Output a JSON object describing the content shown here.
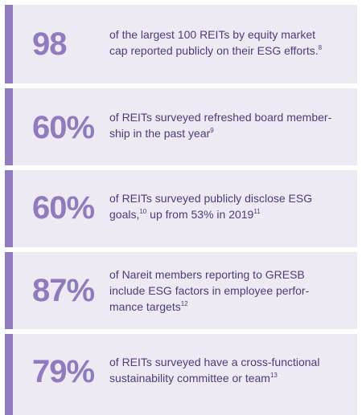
{
  "colors": {
    "accent": "#8f7bbd",
    "card_background": "#eeeaf4",
    "text": "#4a3d7a"
  },
  "stats": [
    {
      "number": "98",
      "text_lines": [
        "of the largest 100 REITs by equity market",
        "cap reported publicly on their ESG efforts."
      ],
      "footnote": "8"
    },
    {
      "number": "60%",
      "text_lines": [
        "of REITs surveyed refreshed board member-",
        "ship in the past year"
      ],
      "footnote": "9"
    },
    {
      "number": "60%",
      "text_line1": "of REITs surveyed publicly disclose ESG",
      "text_line2_a": "goals,",
      "footnote_a": "10",
      "text_line2_b": " up from 53% in 2019",
      "footnote_b": "11"
    },
    {
      "number": "87%",
      "text_lines": [
        "of Nareit members reporting to GRESB",
        "include ESG factors in employee perfor-",
        "mance targets"
      ],
      "footnote": "12"
    },
    {
      "number": "79%",
      "text_lines": [
        "of REITs surveyed have a cross-functional",
        "sustainability committee or team"
      ],
      "footnote": "13"
    }
  ]
}
